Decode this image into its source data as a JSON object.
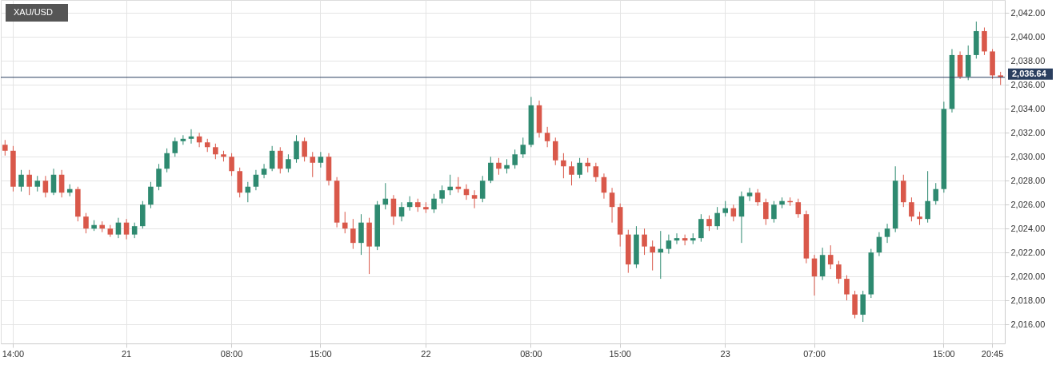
{
  "chart_data": {
    "type": "candlestick",
    "title": "XAU/USD",
    "categories": [
      null,
      "14:00",
      null,
      null,
      null,
      null,
      null,
      null,
      null,
      null,
      null,
      null,
      null,
      null,
      null,
      "21",
      null,
      null,
      null,
      null,
      null,
      null,
      null,
      null,
      null,
      null,
      null,
      null,
      "08:00",
      null,
      null,
      null,
      null,
      null,
      null,
      null,
      null,
      null,
      null,
      "15:00",
      null,
      null,
      null,
      null,
      null,
      null,
      null,
      null,
      null,
      null,
      null,
      null,
      "22",
      null,
      null,
      null,
      null,
      null,
      null,
      null,
      null,
      null,
      null,
      null,
      null,
      "08:00",
      null,
      null,
      null,
      null,
      null,
      null,
      null,
      null,
      null,
      null,
      "15:00",
      null,
      null,
      null,
      null,
      null,
      null,
      null,
      null,
      null,
      null,
      null,
      null,
      "23",
      null,
      null,
      null,
      null,
      null,
      null,
      null,
      null,
      null,
      null,
      "07:00",
      null,
      null,
      null,
      null,
      null,
      null,
      null,
      null,
      null,
      null,
      null,
      null,
      null,
      null,
      null,
      "15:00",
      null,
      null,
      null,
      null,
      null,
      "20:45",
      null
    ],
    "ohlc": [
      [
        2031,
        2031.4,
        2030.1,
        2030.5
      ],
      [
        2030.5,
        2030.9,
        2027.1,
        2027.5
      ],
      [
        2027.5,
        2028.9,
        2027.1,
        2028.5
      ],
      [
        2028.5,
        2028.9,
        2026.8,
        2027.5
      ],
      [
        2027.5,
        2028.4,
        2027.1,
        2028
      ],
      [
        2028,
        2028.4,
        2026.6,
        2027
      ],
      [
        2027,
        2029,
        2026.8,
        2028.5
      ],
      [
        2028.5,
        2028.9,
        2026.6,
        2027
      ],
      [
        2027,
        2027.7,
        2026.7,
        2027.3
      ],
      [
        2027.3,
        2027.5,
        2024.6,
        2025
      ],
      [
        2025,
        2025.3,
        2023.6,
        2024
      ],
      [
        2024,
        2024.7,
        2023.8,
        2024.3
      ],
      [
        2024.3,
        2024.6,
        2023.7,
        2024
      ],
      [
        2024,
        2024.3,
        2023.3,
        2023.5
      ],
      [
        2023.5,
        2024.9,
        2023.2,
        2024.5
      ],
      [
        2024.5,
        2024.8,
        2023.1,
        2023.5
      ],
      [
        2023.5,
        2024.5,
        2023.2,
        2024.2
      ],
      [
        2024.2,
        2026.3,
        2024,
        2026
      ],
      [
        2026,
        2027.9,
        2025.7,
        2027.5
      ],
      [
        2027.5,
        2029.4,
        2027.2,
        2029
      ],
      [
        2029,
        2030.7,
        2028.7,
        2030.3
      ],
      [
        2030.3,
        2031.6,
        2030,
        2031.3
      ],
      [
        2031.3,
        2031.8,
        2031,
        2031.5
      ],
      [
        2031.5,
        2032.3,
        2031.1,
        2031.7
      ],
      [
        2031.7,
        2032,
        2030.8,
        2031.2
      ],
      [
        2031.2,
        2031.5,
        2030.4,
        2030.8
      ],
      [
        2030.8,
        2031.1,
        2029.8,
        2030.2
      ],
      [
        2030.2,
        2030.5,
        2029.6,
        2030
      ],
      [
        2030,
        2030.3,
        2028.4,
        2028.8
      ],
      [
        2028.8,
        2029.1,
        2026.6,
        2027
      ],
      [
        2027,
        2027.9,
        2026.2,
        2027.5
      ],
      [
        2027.5,
        2028.9,
        2027.2,
        2028.5
      ],
      [
        2028.5,
        2029.4,
        2028.2,
        2029
      ],
      [
        2029,
        2030.9,
        2028.8,
        2030.5
      ],
      [
        2030.5,
        2030.8,
        2028.6,
        2029
      ],
      [
        2029,
        2030.2,
        2028.7,
        2029.8
      ],
      [
        2029.8,
        2031.8,
        2029.5,
        2031.3
      ],
      [
        2031.3,
        2031.6,
        2029.6,
        2030
      ],
      [
        2030,
        2030.4,
        2028.3,
        2029.5
      ],
      [
        2029.5,
        2030.4,
        2029.1,
        2030
      ],
      [
        2030,
        2030.3,
        2027.6,
        2028
      ],
      [
        2028,
        2028.3,
        2024.1,
        2024.5
      ],
      [
        2024.5,
        2025.4,
        2023.6,
        2024
      ],
      [
        2024,
        2024.8,
        2022.3,
        2022.8
      ],
      [
        2022.8,
        2025.2,
        2021.8,
        2024.5
      ],
      [
        2024.5,
        2024.9,
        2020.2,
        2022.5
      ],
      [
        2022.5,
        2026.3,
        2022.2,
        2026
      ],
      [
        2026,
        2027.8,
        2025.6,
        2026.5
      ],
      [
        2026.5,
        2026.8,
        2024.3,
        2025
      ],
      [
        2025,
        2026.2,
        2024.6,
        2025.8
      ],
      [
        2025.8,
        2026.7,
        2025.5,
        2026.2
      ],
      [
        2026.2,
        2026.5,
        2025.4,
        2025.8
      ],
      [
        2025.8,
        2026.2,
        2025.3,
        2025.6
      ],
      [
        2025.6,
        2026.9,
        2025.3,
        2026.5
      ],
      [
        2026.5,
        2027.6,
        2026.1,
        2027.2
      ],
      [
        2027.2,
        2028.5,
        2026.8,
        2027.5
      ],
      [
        2027.5,
        2028.3,
        2027,
        2027.3
      ],
      [
        2027.3,
        2027.7,
        2026.4,
        2026.8
      ],
      [
        2026.8,
        2027.2,
        2025.7,
        2026.5
      ],
      [
        2026.5,
        2028.4,
        2026.2,
        2028
      ],
      [
        2028,
        2030,
        2027.8,
        2029.5
      ],
      [
        2029.5,
        2029.9,
        2028.5,
        2029
      ],
      [
        2029,
        2029.8,
        2028.6,
        2029.3
      ],
      [
        2029.3,
        2030.6,
        2029,
        2030.2
      ],
      [
        2030.2,
        2031.6,
        2029.9,
        2031
      ],
      [
        2031,
        2035,
        2030.8,
        2034.3
      ],
      [
        2034.3,
        2034.7,
        2031.6,
        2032
      ],
      [
        2032,
        2032.5,
        2030.8,
        2031.3
      ],
      [
        2031.3,
        2031.6,
        2029.3,
        2029.7
      ],
      [
        2029.7,
        2030.3,
        2028.2,
        2029.2
      ],
      [
        2029.2,
        2029.6,
        2027.6,
        2028.5
      ],
      [
        2028.5,
        2029.9,
        2028.2,
        2029.5
      ],
      [
        2029.5,
        2029.9,
        2028.7,
        2029.2
      ],
      [
        2029.2,
        2029.5,
        2027.9,
        2028.3
      ],
      [
        2028.3,
        2028.6,
        2026.5,
        2027
      ],
      [
        2027,
        2027.4,
        2024.5,
        2025.8
      ],
      [
        2025.8,
        2026.1,
        2022.5,
        2023.5
      ],
      [
        2023.5,
        2023.9,
        2020.3,
        2021
      ],
      [
        2021,
        2024.2,
        2020.7,
        2023.5
      ],
      [
        2023.5,
        2024,
        2021.8,
        2022.5
      ],
      [
        2022.5,
        2023,
        2020.5,
        2022
      ],
      [
        2022,
        2023.8,
        2019.8,
        2022.3
      ],
      [
        2022.3,
        2023.5,
        2021.9,
        2023
      ],
      [
        2023,
        2023.6,
        2022.7,
        2023.2
      ],
      [
        2023.2,
        2023.5,
        2022.6,
        2023
      ],
      [
        2023,
        2023.6,
        2022.7,
        2023.2
      ],
      [
        2023.2,
        2025.2,
        2022.9,
        2024.8
      ],
      [
        2024.8,
        2025.1,
        2023.8,
        2024.2
      ],
      [
        2024.2,
        2025.8,
        2023.9,
        2025.3
      ],
      [
        2025.3,
        2026.3,
        2025,
        2025.7
      ],
      [
        2025.7,
        2026,
        2024.6,
        2025
      ],
      [
        2025,
        2027.1,
        2022.8,
        2026.7
      ],
      [
        2026.7,
        2027.4,
        2026.3,
        2027
      ],
      [
        2027,
        2027.3,
        2025.9,
        2026.2
      ],
      [
        2026.2,
        2026.5,
        2024.3,
        2024.8
      ],
      [
        2024.8,
        2026.3,
        2024.5,
        2026
      ],
      [
        2026,
        2026.6,
        2025.7,
        2026.3
      ],
      [
        2026.3,
        2026.6,
        2025.9,
        2026.2
      ],
      [
        2026.2,
        2026.5,
        2024.9,
        2025.2
      ],
      [
        2025.2,
        2025.5,
        2021.1,
        2021.5
      ],
      [
        2021.5,
        2021.8,
        2018.4,
        2020
      ],
      [
        2020,
        2022.4,
        2019.7,
        2021.8
      ],
      [
        2021.8,
        2022.6,
        2020.6,
        2021
      ],
      [
        2021,
        2021.3,
        2019.4,
        2019.8
      ],
      [
        2019.8,
        2020.1,
        2018,
        2018.5
      ],
      [
        2018.5,
        2018.8,
        2016.5,
        2016.8
      ],
      [
        2016.8,
        2018.8,
        2016.2,
        2018.5
      ],
      [
        2018.5,
        2022.3,
        2018.2,
        2022
      ],
      [
        2022,
        2023.7,
        2021.7,
        2023.3
      ],
      [
        2023.3,
        2024.4,
        2022.8,
        2024
      ],
      [
        2024,
        2029.2,
        2023.7,
        2028
      ],
      [
        2028,
        2028.5,
        2025.8,
        2026.2
      ],
      [
        2026.2,
        2026.6,
        2024.6,
        2025
      ],
      [
        2025,
        2025.4,
        2024.3,
        2024.8
      ],
      [
        2024.8,
        2028.8,
        2024.5,
        2026.3
      ],
      [
        2026.3,
        2027.8,
        2026,
        2027.3
      ],
      [
        2027.3,
        2034.6,
        2027,
        2034
      ],
      [
        2034,
        2039,
        2033.7,
        2038.5
      ],
      [
        2038.5,
        2038.8,
        2036.5,
        2036.7
      ],
      [
        2036.7,
        2039.3,
        2036.4,
        2038.5
      ],
      [
        2038.5,
        2041.3,
        2038.2,
        2040.5
      ],
      [
        2040.5,
        2040.8,
        2038.5,
        2038.8
      ],
      [
        2038.8,
        2039,
        2036.5,
        2036.8
      ],
      [
        2036.8,
        2037.1,
        2036,
        2036.64
      ]
    ],
    "ylim": [
      2014.4,
      2043.1
    ],
    "yticks": [
      {
        "value": 2016,
        "label": "2,016.00"
      },
      {
        "value": 2018,
        "label": "2,018.00"
      },
      {
        "value": 2020,
        "label": "2,020.00"
      },
      {
        "value": 2022,
        "label": "2,022.00"
      },
      {
        "value": 2024,
        "label": "2,024.00"
      },
      {
        "value": 2026,
        "label": "2,026.00"
      },
      {
        "value": 2028,
        "label": "2,028.00"
      },
      {
        "value": 2030,
        "label": "2,030.00"
      },
      {
        "value": 2032,
        "label": "2,032.00"
      },
      {
        "value": 2034,
        "label": "2,034.00"
      },
      {
        "value": 2036,
        "label": "2,036.00"
      },
      {
        "value": 2038,
        "label": "2,038.00"
      },
      {
        "value": 2040,
        "label": "2,040.00"
      },
      {
        "value": 2042,
        "label": "2,042.00"
      }
    ],
    "ref_lines": [
      {
        "axis": "y",
        "value": 2036.64,
        "label": "2,036.64",
        "color": "#2a3f5f"
      }
    ],
    "grid": true
  }
}
